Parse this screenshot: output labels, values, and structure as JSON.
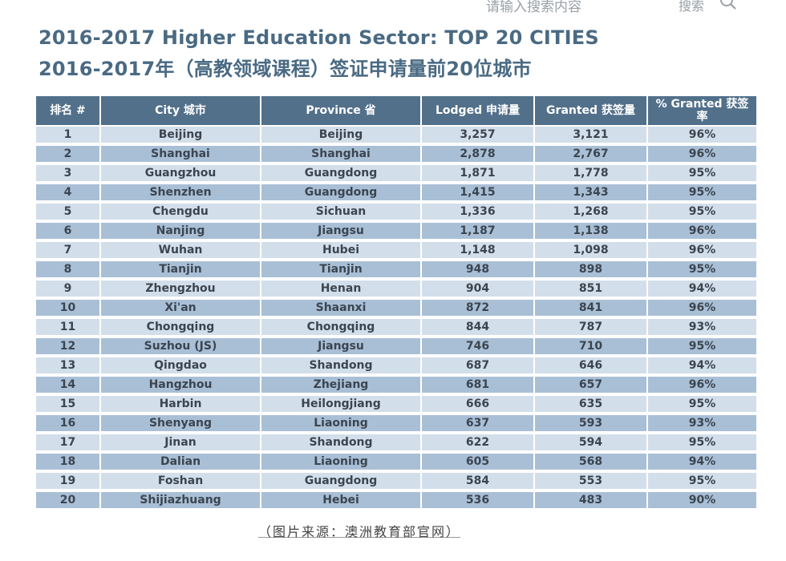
{
  "search": {
    "placeholder": "请输入搜索内容",
    "button_label": "搜索"
  },
  "title": {
    "line1": "2016-2017 Higher Education Sector: TOP 20 CITIES",
    "line2": "2016-2017年（高教领域课程）签证申请量前20位城市"
  },
  "table": {
    "headers": [
      "排名 #",
      "City 城市",
      "Province 省",
      "Lodged 申请量",
      "Granted 获签量",
      "% Granted 获签率"
    ],
    "rows": [
      [
        "1",
        "Beijing",
        "Beijing",
        "3,257",
        "3,121",
        "96%"
      ],
      [
        "2",
        "Shanghai",
        "Shanghai",
        "2,878",
        "2,767",
        "96%"
      ],
      [
        "3",
        "Guangzhou",
        "Guangdong",
        "1,871",
        "1,778",
        "95%"
      ],
      [
        "4",
        "Shenzhen",
        "Guangdong",
        "1,415",
        "1,343",
        "95%"
      ],
      [
        "5",
        "Chengdu",
        "Sichuan",
        "1,336",
        "1,268",
        "95%"
      ],
      [
        "6",
        "Nanjing",
        "Jiangsu",
        "1,187",
        "1,138",
        "96%"
      ],
      [
        "7",
        "Wuhan",
        "Hubei",
        "1,148",
        "1,098",
        "96%"
      ],
      [
        "8",
        "Tianjin",
        "Tianjin",
        "948",
        "898",
        "95%"
      ],
      [
        "9",
        "Zhengzhou",
        "Henan",
        "904",
        "851",
        "94%"
      ],
      [
        "10",
        "Xi'an",
        "Shaanxi",
        "872",
        "841",
        "96%"
      ],
      [
        "11",
        "Chongqing",
        "Chongqing",
        "844",
        "787",
        "93%"
      ],
      [
        "12",
        "Suzhou (JS)",
        "Jiangsu",
        "746",
        "710",
        "95%"
      ],
      [
        "13",
        "Qingdao",
        "Shandong",
        "687",
        "646",
        "94%"
      ],
      [
        "14",
        "Hangzhou",
        "Zhejiang",
        "681",
        "657",
        "96%"
      ],
      [
        "15",
        "Harbin",
        "Heilongjiang",
        "666",
        "635",
        "95%"
      ],
      [
        "16",
        "Shenyang",
        "Liaoning",
        "637",
        "593",
        "93%"
      ],
      [
        "17",
        "Jinan",
        "Shandong",
        "622",
        "594",
        "95%"
      ],
      [
        "18",
        "Dalian",
        "Liaoning",
        "605",
        "568",
        "94%"
      ],
      [
        "19",
        "Foshan",
        "Guangdong",
        "584",
        "553",
        "95%"
      ],
      [
        "20",
        "Shijiazhuang",
        "Hebei",
        "536",
        "483",
        "90%"
      ]
    ]
  },
  "caption": "（图片来源：澳洲教育部官网）",
  "colors": {
    "title": "#4a6a83",
    "header_bg": "#52708a",
    "row_light": "#d2deea",
    "row_dark": "#a9bfd6"
  }
}
